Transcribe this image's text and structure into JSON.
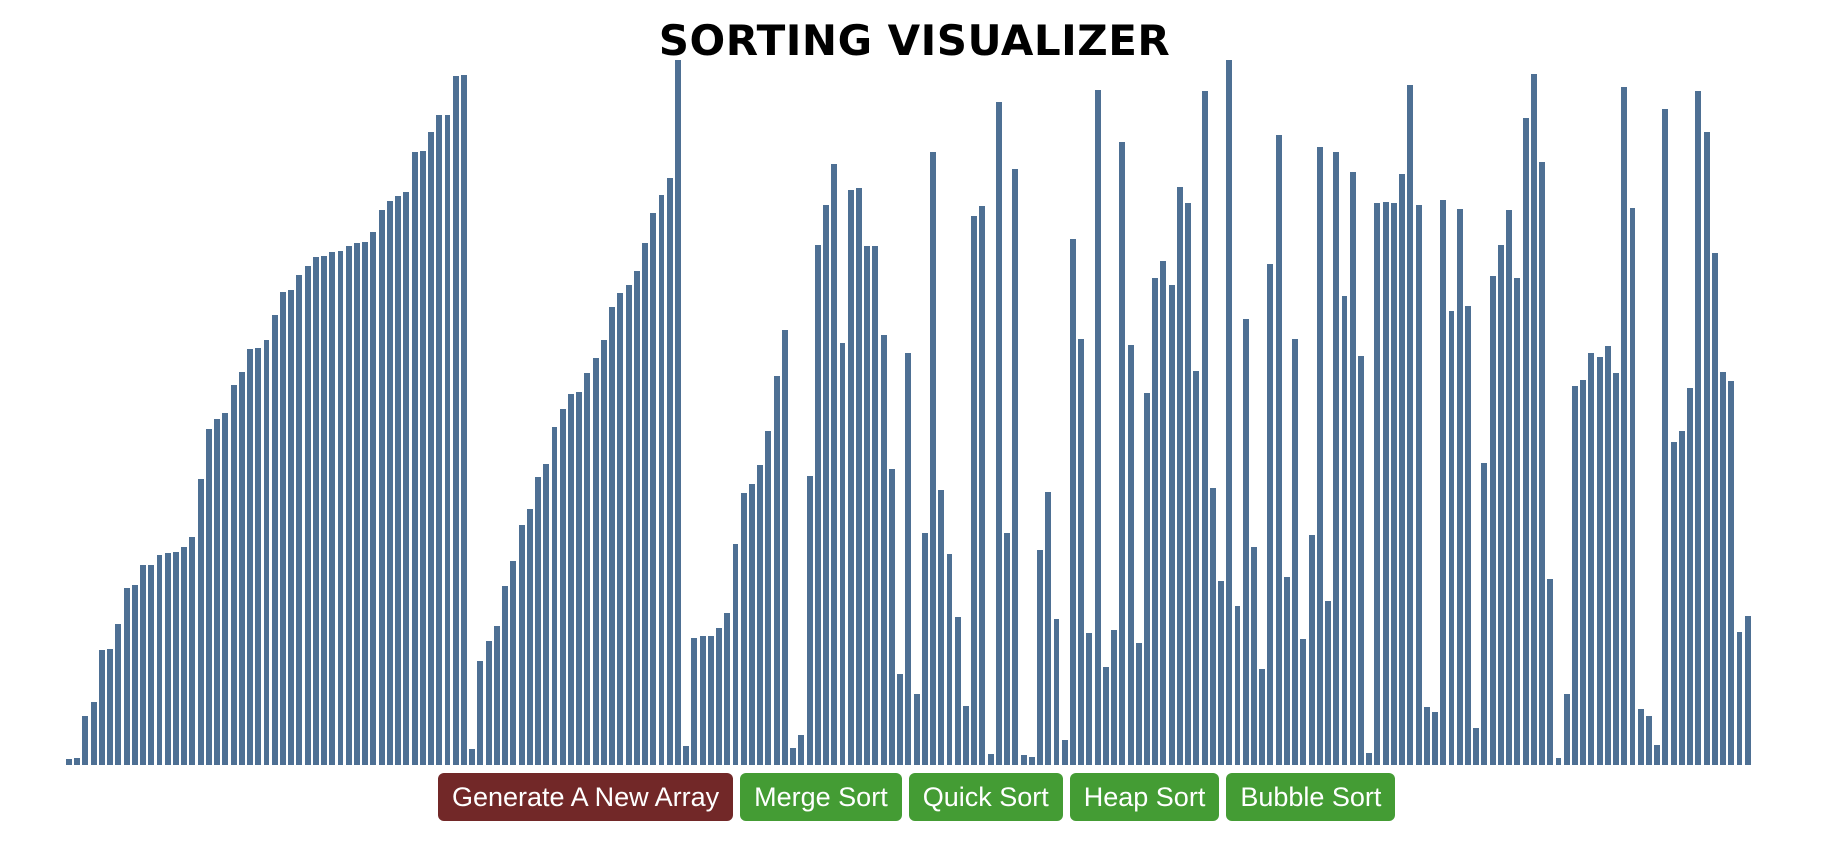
{
  "page": {
    "title": "SORTING VISUALIZER"
  },
  "colors": {
    "bar": "#4e7094",
    "generate_button": "#722828",
    "sort_button": "#449c34",
    "title": "#000000"
  },
  "bars": {
    "max_value": 690,
    "values": [
      6,
      7,
      48,
      62,
      113,
      114,
      138,
      173,
      176,
      196,
      196,
      206,
      208,
      209,
      213,
      223,
      280,
      329,
      339,
      345,
      372,
      385,
      407,
      408,
      416,
      440,
      463,
      465,
      480,
      488,
      497,
      498,
      502,
      503,
      508,
      511,
      512,
      522,
      543,
      552,
      557,
      561,
      600,
      601,
      620,
      636,
      636,
      674,
      675,
      16,
      102,
      121,
      136,
      175,
      200,
      235,
      251,
      282,
      295,
      331,
      348,
      363,
      365,
      384,
      398,
      416,
      448,
      462,
      470,
      484,
      511,
      540,
      558,
      575,
      690,
      19,
      124,
      126,
      126,
      134,
      149,
      216,
      266,
      275,
      294,
      327,
      381,
      426,
      17,
      29,
      283,
      509,
      548,
      588,
      413,
      563,
      565,
      508,
      508,
      421,
      290,
      89,
      403,
      70,
      227,
      600,
      269,
      207,
      145,
      58,
      537,
      547,
      11,
      649,
      227,
      583,
      10,
      8,
      210,
      267,
      143,
      25,
      515,
      417,
      129,
      661,
      96,
      132,
      610,
      411,
      119,
      364,
      477,
      493,
      470,
      566,
      550,
      386,
      660,
      271,
      180,
      690,
      156,
      437,
      213,
      94,
      490,
      617,
      184,
      417,
      123,
      225,
      605,
      161,
      600,
      459,
      580,
      400,
      12,
      550,
      551,
      550,
      578,
      666,
      548,
      57,
      52,
      553,
      444,
      544,
      449,
      36,
      296,
      479,
      509,
      543,
      477,
      633,
      676,
      590,
      182,
      7,
      70,
      371,
      377,
      403,
      399,
      410,
      384,
      664,
      545,
      55,
      48,
      20,
      642,
      316,
      327,
      369,
      660,
      620,
      501,
      385,
      376,
      130,
      146
    ]
  },
  "buttons": {
    "generate": "Generate A New Array",
    "merge": "Merge Sort",
    "quick": "Quick Sort",
    "heap": "Heap Sort",
    "bubble": "Bubble Sort"
  }
}
